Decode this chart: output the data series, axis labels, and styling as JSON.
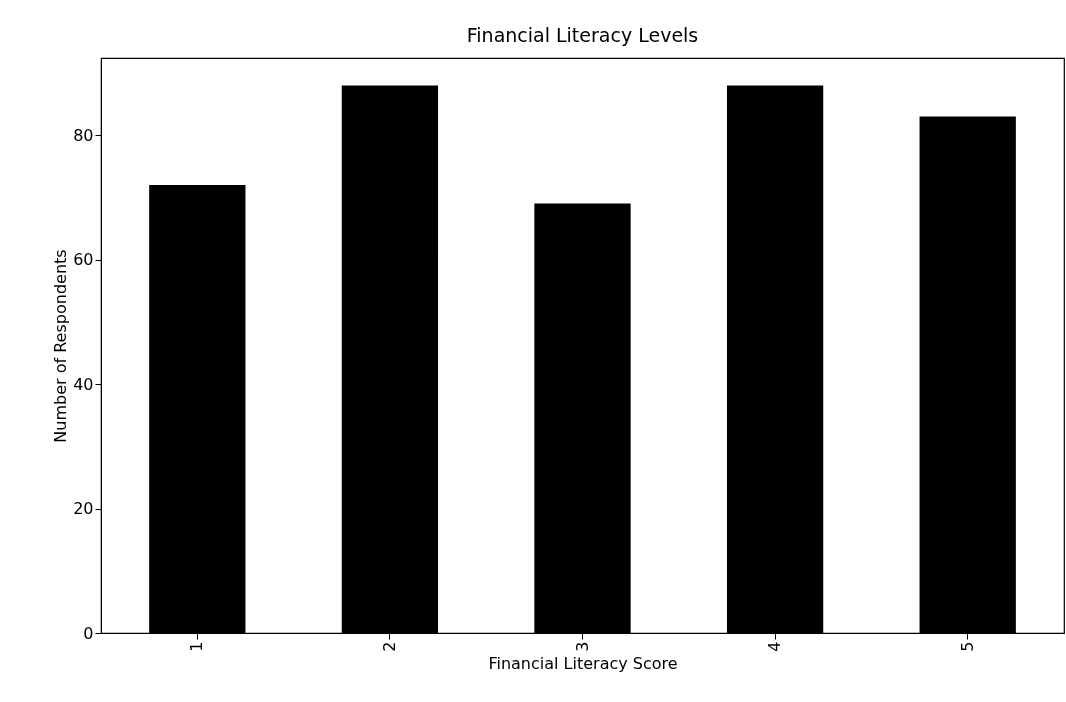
{
  "chart_data": {
    "type": "bar",
    "title": "Financial Literacy Levels",
    "xlabel": "Financial Literacy Score",
    "ylabel": "Number of Respondents",
    "categories": [
      "1",
      "2",
      "3",
      "4",
      "5"
    ],
    "values": [
      72,
      88,
      69,
      88,
      83
    ],
    "color": "#000000",
    "ylim": [
      0,
      92.4
    ],
    "yticks": [
      0,
      20,
      40,
      60,
      80
    ],
    "grid": false
  }
}
